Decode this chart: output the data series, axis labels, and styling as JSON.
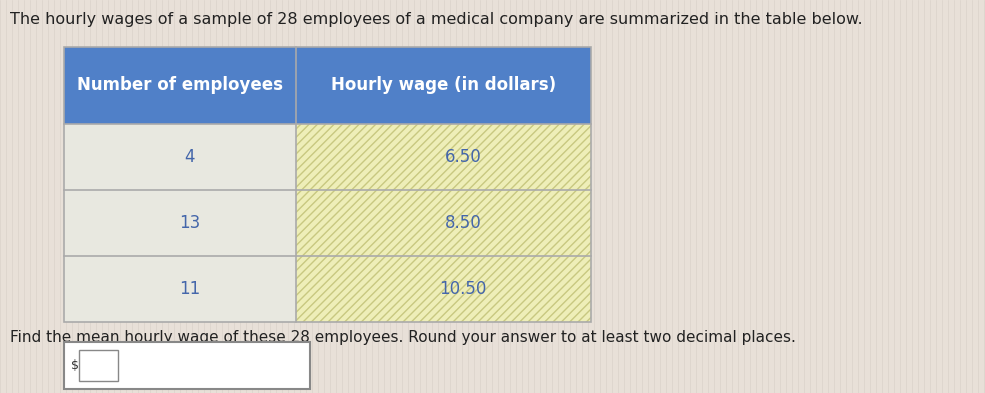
{
  "title": "The hourly wages of a sample of 28 employees of a medical company are summarized in the table below.",
  "subtitle": "Find the mean hourly wage of these 28 employees. Round your answer to at least two decimal places.",
  "col1_header": "Number of employees",
  "col2_header": "Hourly wage (in dollars)",
  "rows": [
    {
      "employees": "4",
      "wage": "6.50"
    },
    {
      "employees": "13",
      "wage": "8.50"
    },
    {
      "employees": "11",
      "wage": "10.50"
    }
  ],
  "header_bg_color": "#5080C8",
  "header_text_color": "#FFFFFF",
  "row_left_bg": "#E8E8E0",
  "row_right_bg": "#EEEEB8",
  "row_text_color": "#4466AA",
  "table_border_color": "#AAAAAA",
  "bg_color": "#E8E0D8",
  "title_color": "#222222",
  "subtitle_color": "#222222",
  "title_fontsize": 11.5,
  "subtitle_fontsize": 11,
  "table_fontsize": 12,
  "answer_box_color": "#CCCCCC"
}
